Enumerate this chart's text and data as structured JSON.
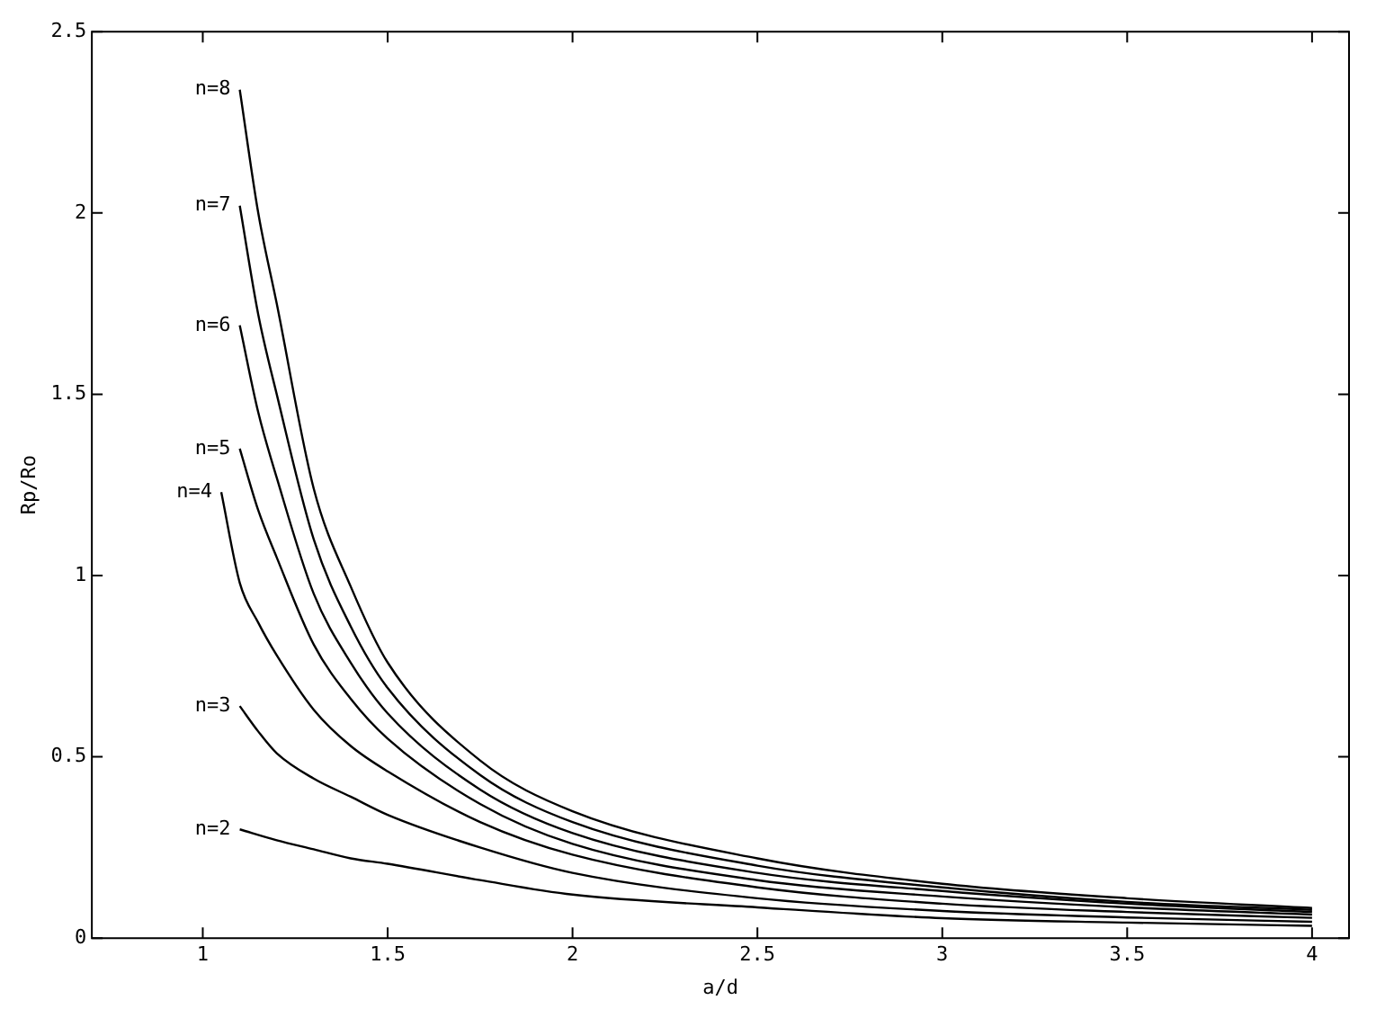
{
  "chart_data": {
    "type": "line",
    "xlabel": "a/d",
    "ylabel": "Rp/Ro",
    "xlim": [
      0.7,
      4.1
    ],
    "ylim": [
      0,
      2.5
    ],
    "xticks": [
      1,
      1.5,
      2,
      2.5,
      3,
      3.5,
      4
    ],
    "yticks": [
      0,
      0.5,
      1,
      1.5,
      2,
      2.5
    ],
    "grid": false,
    "marker": "none",
    "line_style": "solid",
    "series": [
      {
        "name": "n=8",
        "color": "#000000",
        "x": [
          1.1,
          1.15,
          1.2,
          1.3,
          1.4,
          1.5,
          1.75,
          2,
          2.5,
          3,
          3.5,
          4
        ],
        "values": [
          2.34,
          2.0,
          1.75,
          1.24,
          0.97,
          0.76,
          0.49,
          0.35,
          0.22,
          0.15,
          0.11,
          0.083
        ]
      },
      {
        "name": "n=7",
        "color": "#000000",
        "x": [
          1.1,
          1.15,
          1.2,
          1.3,
          1.4,
          1.5,
          1.75,
          2,
          2.5,
          3,
          3.5,
          4
        ],
        "values": [
          2.02,
          1.72,
          1.5,
          1.1,
          0.86,
          0.69,
          0.45,
          0.32,
          0.2,
          0.14,
          0.1,
          0.078
        ]
      },
      {
        "name": "n=6",
        "color": "#000000",
        "x": [
          1.1,
          1.15,
          1.2,
          1.3,
          1.4,
          1.5,
          1.75,
          2,
          2.5,
          3,
          3.5,
          4
        ],
        "values": [
          1.69,
          1.45,
          1.27,
          0.95,
          0.76,
          0.62,
          0.41,
          0.29,
          0.18,
          0.13,
          0.095,
          0.072
        ]
      },
      {
        "name": "n=5",
        "color": "#000000",
        "x": [
          1.1,
          1.15,
          1.2,
          1.3,
          1.4,
          1.5,
          1.75,
          2,
          2.5,
          3,
          3.5,
          4
        ],
        "values": [
          1.35,
          1.18,
          1.05,
          0.81,
          0.66,
          0.55,
          0.37,
          0.26,
          0.16,
          0.115,
          0.085,
          0.065
        ]
      },
      {
        "name": "n=4",
        "color": "#000000",
        "x": [
          1.05,
          1.1,
          1.15,
          1.2,
          1.3,
          1.4,
          1.5,
          1.75,
          2,
          2.5,
          3,
          3.5,
          4
        ],
        "values": [
          1.23,
          0.98,
          0.87,
          0.78,
          0.63,
          0.53,
          0.46,
          0.32,
          0.23,
          0.14,
          0.095,
          0.072,
          0.056
        ]
      },
      {
        "name": "n=3",
        "color": "#000000",
        "x": [
          1.1,
          1.15,
          1.2,
          1.3,
          1.4,
          1.5,
          1.75,
          2,
          2.5,
          3,
          3.5,
          4
        ],
        "values": [
          0.64,
          0.57,
          0.51,
          0.44,
          0.39,
          0.34,
          0.25,
          0.18,
          0.11,
          0.075,
          0.057,
          0.045
        ]
      },
      {
        "name": "n=2",
        "color": "#000000",
        "x": [
          1.1,
          1.2,
          1.3,
          1.4,
          1.5,
          1.75,
          2,
          2.5,
          3,
          3.5,
          4
        ],
        "values": [
          0.3,
          0.27,
          0.245,
          0.22,
          0.205,
          0.16,
          0.12,
          0.085,
          0.055,
          0.043,
          0.034
        ]
      }
    ]
  }
}
